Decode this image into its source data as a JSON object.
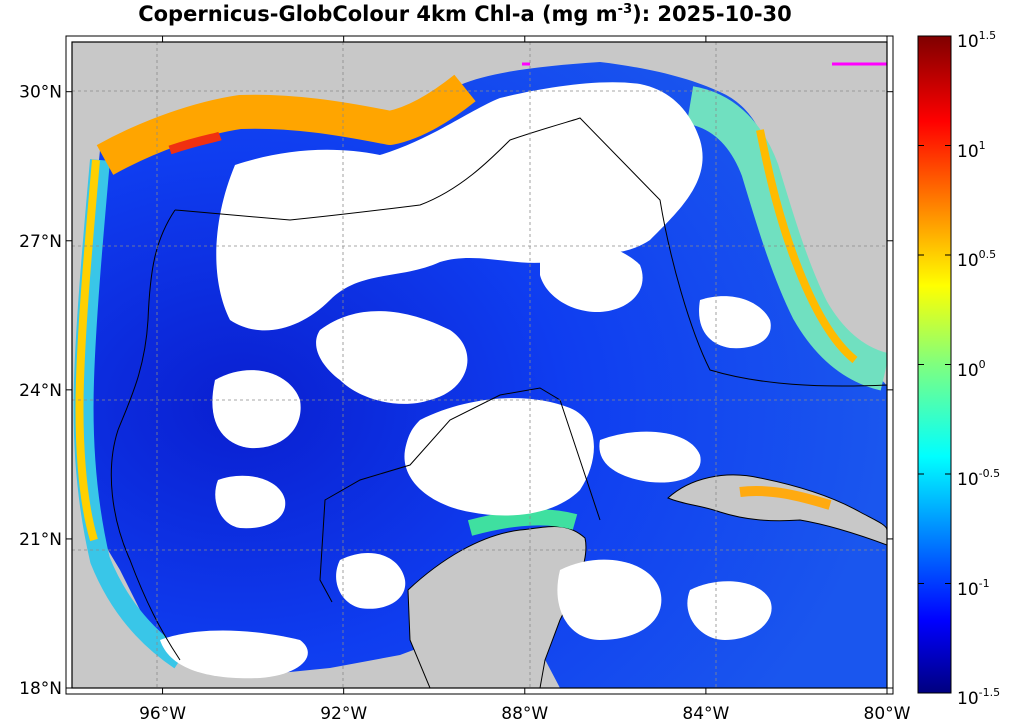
{
  "title": {
    "main": "Copernicus-GlobColour 4km Chl-a (mg m",
    "exponent": "-3",
    "suffix": "): 2025-10-30"
  },
  "map": {
    "x_range_deg": [
      -98.0,
      -80.0
    ],
    "y_range_deg": [
      18.0,
      31.0
    ],
    "x_ticks": [
      {
        "value": -96,
        "label": "96°W"
      },
      {
        "value": -92,
        "label": "92°W"
      },
      {
        "value": -88,
        "label": "88°W"
      },
      {
        "value": -84,
        "label": "84°W"
      },
      {
        "value": -80,
        "label": "80°W"
      }
    ],
    "y_ticks": [
      {
        "value": 30,
        "label": "30°N"
      },
      {
        "value": 27,
        "label": "27°N"
      },
      {
        "value": 24,
        "label": "24°N"
      },
      {
        "value": 21,
        "label": "21°N"
      },
      {
        "value": 18,
        "label": "18°N"
      }
    ],
    "grid": true,
    "colors": {
      "land": "#c8c8c8",
      "no_data": "#ffffff",
      "coastline": "#000000",
      "marker": "#ff00ff"
    }
  },
  "colorbar": {
    "scale": "log10",
    "range_exponent": [
      -1.5,
      1.5
    ],
    "colormap": "jet",
    "ticks": [
      {
        "base": "10",
        "exp": "1.5"
      },
      {
        "base": "10",
        "exp": "1"
      },
      {
        "base": "10",
        "exp": "0.5"
      },
      {
        "base": "10",
        "exp": "0"
      },
      {
        "base": "10",
        "exp": "-0.5"
      },
      {
        "base": "10",
        "exp": "-1"
      },
      {
        "base": "10",
        "exp": "-1.5"
      }
    ]
  }
}
